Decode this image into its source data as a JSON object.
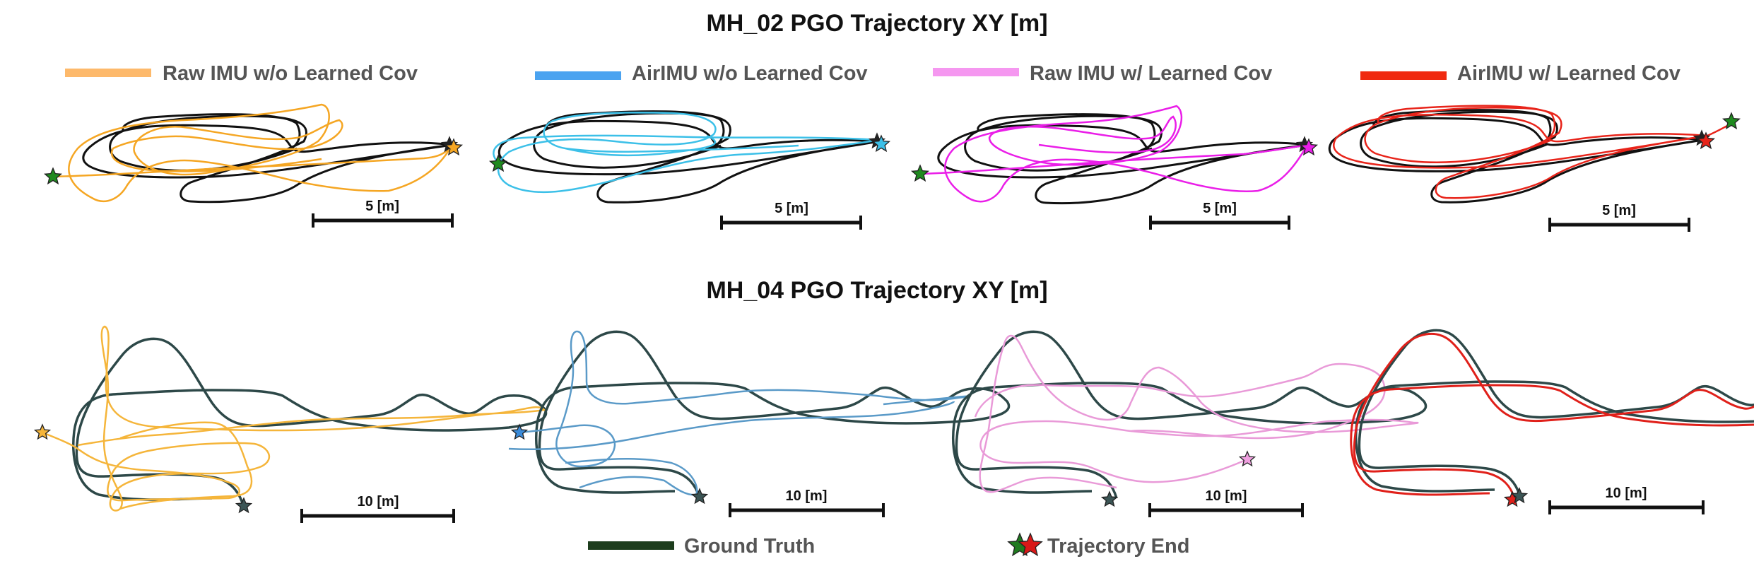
{
  "figure": {
    "row_titles": [
      "MH_02 PGO Trajectory XY [m]",
      "MH_04 PGO Trajectory XY [m]"
    ],
    "legend_top": [
      {
        "label": "Raw IMU w/o Learned Cov",
        "color": "#fdb96b"
      },
      {
        "label": "AirIMU w/o Learned Cov",
        "color": "#4ba3f0"
      },
      {
        "label": "Raw IMU w/ Learned Cov",
        "color": "#f597f0"
      },
      {
        "label": "AirIMU w/ Learned Cov",
        "color": "#f02a10"
      }
    ],
    "legend_bottom": [
      {
        "label": "Ground Truth",
        "color": "#1d3d1d",
        "kind": "line"
      },
      {
        "label": "Trajectory End",
        "color": "#d81818",
        "kind": "star"
      }
    ]
  },
  "chart_data": [
    {
      "type": "line",
      "panel": "MH_02 / Raw IMU w/o Learned Cov",
      "scale_bar_label": "5 [m]",
      "series": [
        {
          "name": "Ground Truth",
          "color": "#111111"
        },
        {
          "name": "Raw IMU w/o Learned Cov",
          "color": "#f5a623"
        }
      ],
      "trajectory_end_color": "#f5a623",
      "start_marker_color": "#1f8a1f"
    },
    {
      "type": "line",
      "panel": "MH_02 / AirIMU w/o Learned Cov",
      "scale_bar_label": "5 [m]",
      "series": [
        {
          "name": "Ground Truth",
          "color": "#111111"
        },
        {
          "name": "AirIMU w/o Learned Cov",
          "color": "#3cc0e8"
        }
      ],
      "trajectory_end_color": "#3cc0e8",
      "start_marker_color": "#1f8a1f"
    },
    {
      "type": "line",
      "panel": "MH_02 / Raw IMU w/ Learned Cov",
      "scale_bar_label": "5 [m]",
      "series": [
        {
          "name": "Ground Truth",
          "color": "#111111"
        },
        {
          "name": "Raw IMU w/ Learned Cov",
          "color": "#ea1ee8"
        }
      ],
      "trajectory_end_color": "#ea1ee8",
      "start_marker_color": "#1f8a1f"
    },
    {
      "type": "line",
      "panel": "MH_02 / AirIMU w/ Learned Cov",
      "scale_bar_label": "5 [m]",
      "series": [
        {
          "name": "Ground Truth",
          "color": "#111111"
        },
        {
          "name": "AirIMU w/ Learned Cov",
          "color": "#e8241a"
        }
      ],
      "trajectory_end_color": "#e8241a",
      "start_marker_color": "#1f8a1f"
    },
    {
      "type": "line",
      "panel": "MH_04 / Raw IMU w/o Learned Cov",
      "scale_bar_label": "10 [m]",
      "series": [
        {
          "name": "Ground Truth",
          "color": "#2d4848"
        },
        {
          "name": "Raw IMU w/o Learned Cov",
          "color": "#f5b53a"
        }
      ],
      "trajectory_end_color": "#f5b53a"
    },
    {
      "type": "line",
      "panel": "MH_04 / AirIMU w/o Learned Cov",
      "scale_bar_label": "10 [m]",
      "series": [
        {
          "name": "Ground Truth",
          "color": "#2d4848"
        },
        {
          "name": "AirIMU w/o Learned Cov",
          "color": "#5a9ac8"
        }
      ],
      "trajectory_end_color": "#3a8ad8"
    },
    {
      "type": "line",
      "panel": "MH_04 / Raw IMU w/ Learned Cov",
      "scale_bar_label": "10 [m]",
      "series": [
        {
          "name": "Ground Truth",
          "color": "#2d4848"
        },
        {
          "name": "Raw IMU w/ Learned Cov",
          "color": "#e99ad8"
        }
      ],
      "trajectory_end_color": "#f0a0e0"
    },
    {
      "type": "line",
      "panel": "MH_04 / AirIMU w/ Learned Cov",
      "scale_bar_label": "10 [m]",
      "series": [
        {
          "name": "Ground Truth",
          "color": "#2d4848"
        },
        {
          "name": "AirIMU w/ Learned Cov",
          "color": "#e0201a"
        }
      ],
      "trajectory_end_color": "#e0201a"
    }
  ]
}
